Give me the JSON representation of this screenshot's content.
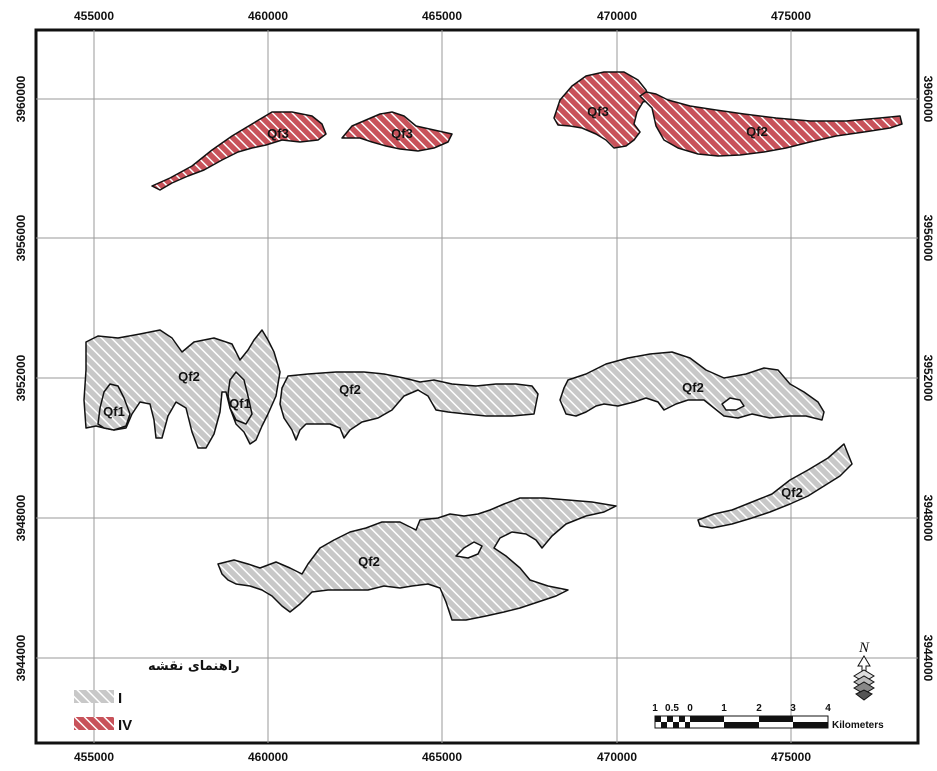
{
  "map": {
    "x_ticks": [
      "455000",
      "460000",
      "465000",
      "470000",
      "475000"
    ],
    "y_ticks": [
      "3960000",
      "3956000",
      "3952000",
      "3948000",
      "3944000"
    ],
    "units": [
      {
        "label": "Qf3",
        "class": "IV"
      },
      {
        "label": "Qf3",
        "class": "IV"
      },
      {
        "label": "Qf3",
        "class": "IV"
      },
      {
        "label": "Qf2",
        "class": "IV"
      },
      {
        "label": "Qf2",
        "class": "I"
      },
      {
        "label": "Qf1",
        "class": "I"
      },
      {
        "label": "Qf1",
        "class": "I"
      },
      {
        "label": "Qf2",
        "class": "I"
      },
      {
        "label": "Qf2",
        "class": "I"
      },
      {
        "label": "Qf2",
        "class": "I"
      },
      {
        "label": "Qf2",
        "class": "I"
      }
    ]
  },
  "legend": {
    "title": "راهنمای نقشه",
    "items": [
      {
        "label": "I",
        "color": "#c8c8c8"
      },
      {
        "label": "IV",
        "color": "#c8525a"
      }
    ]
  },
  "scale_bar": {
    "ticks": [
      "1",
      "0.5",
      "0",
      "1",
      "2",
      "3",
      "4"
    ],
    "unit": "Kilometers"
  },
  "north_arrow": {
    "label": "N"
  },
  "colors": {
    "class_I": "#c8c8c8",
    "class_IV": "#c8525a",
    "hatch": "#ffffff",
    "grid": "#9a9a9a",
    "outline": "#111111"
  }
}
